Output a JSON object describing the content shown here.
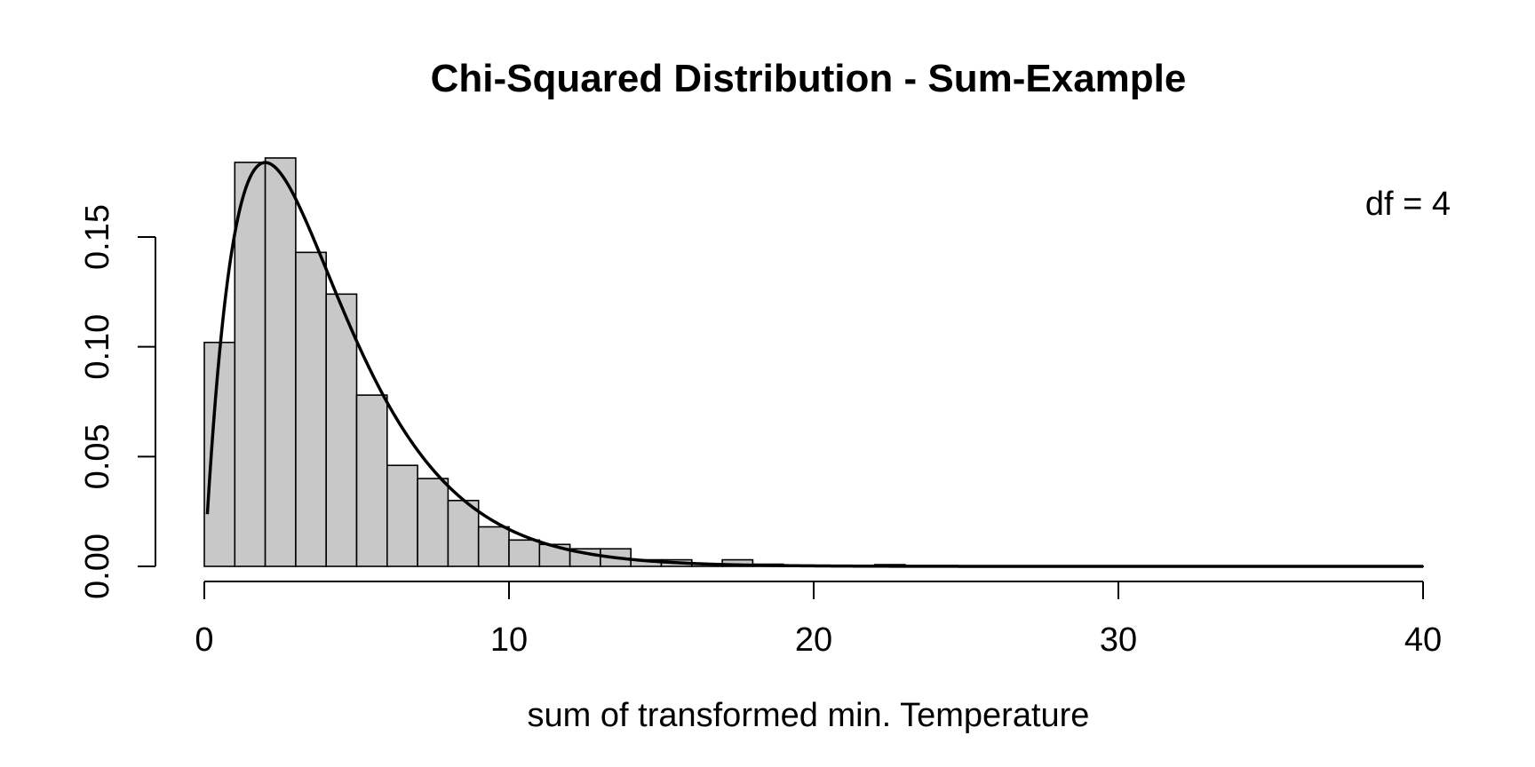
{
  "chart_data": {
    "type": "bar",
    "title": "Chi-Squared Distribution - Sum-Example",
    "xlabel": "sum of transformed min. Temperature",
    "ylabel": "",
    "xlim": [
      0,
      40
    ],
    "ylim": [
      0,
      0.15
    ],
    "x_ticks": [
      0,
      10,
      20,
      30,
      40
    ],
    "x_tick_labels": [
      "0",
      "10",
      "20",
      "30",
      "40"
    ],
    "y_ticks": [
      0,
      0.05,
      0.1,
      0.15
    ],
    "y_tick_labels": [
      "0.00",
      "0.05",
      "0.10",
      "0.15"
    ],
    "annotation": "df = 4",
    "grid": false,
    "histogram": {
      "bin_width": 1,
      "bin_starts": [
        0,
        1,
        2,
        3,
        4,
        5,
        6,
        7,
        8,
        9,
        10,
        11,
        12,
        13,
        14,
        15,
        16,
        17,
        18,
        19,
        20,
        21,
        22,
        23,
        24,
        25,
        26,
        27,
        28,
        29,
        30,
        31,
        32,
        33,
        34,
        35,
        36,
        37,
        38,
        39
      ],
      "density": [
        0.102,
        0.184,
        0.186,
        0.143,
        0.124,
        0.078,
        0.046,
        0.04,
        0.03,
        0.018,
        0.012,
        0.01,
        0.008,
        0.008,
        0.003,
        0.003,
        0.001,
        0.003,
        0.001,
        0.0005,
        0.0003,
        0.0003,
        0.0008,
        0.0002,
        0.0002,
        0.0001,
        0.0001,
        0.0001,
        0.0001,
        0.0001,
        0.0001,
        0.0001,
        0.0001,
        0.0001,
        0.0001,
        0.0001,
        0.0001,
        0.0001,
        0.0001,
        0.0001
      ]
    },
    "density_curve": {
      "distribution": "chi-squared",
      "df": 4,
      "x_range": [
        0.1,
        40
      ]
    }
  }
}
